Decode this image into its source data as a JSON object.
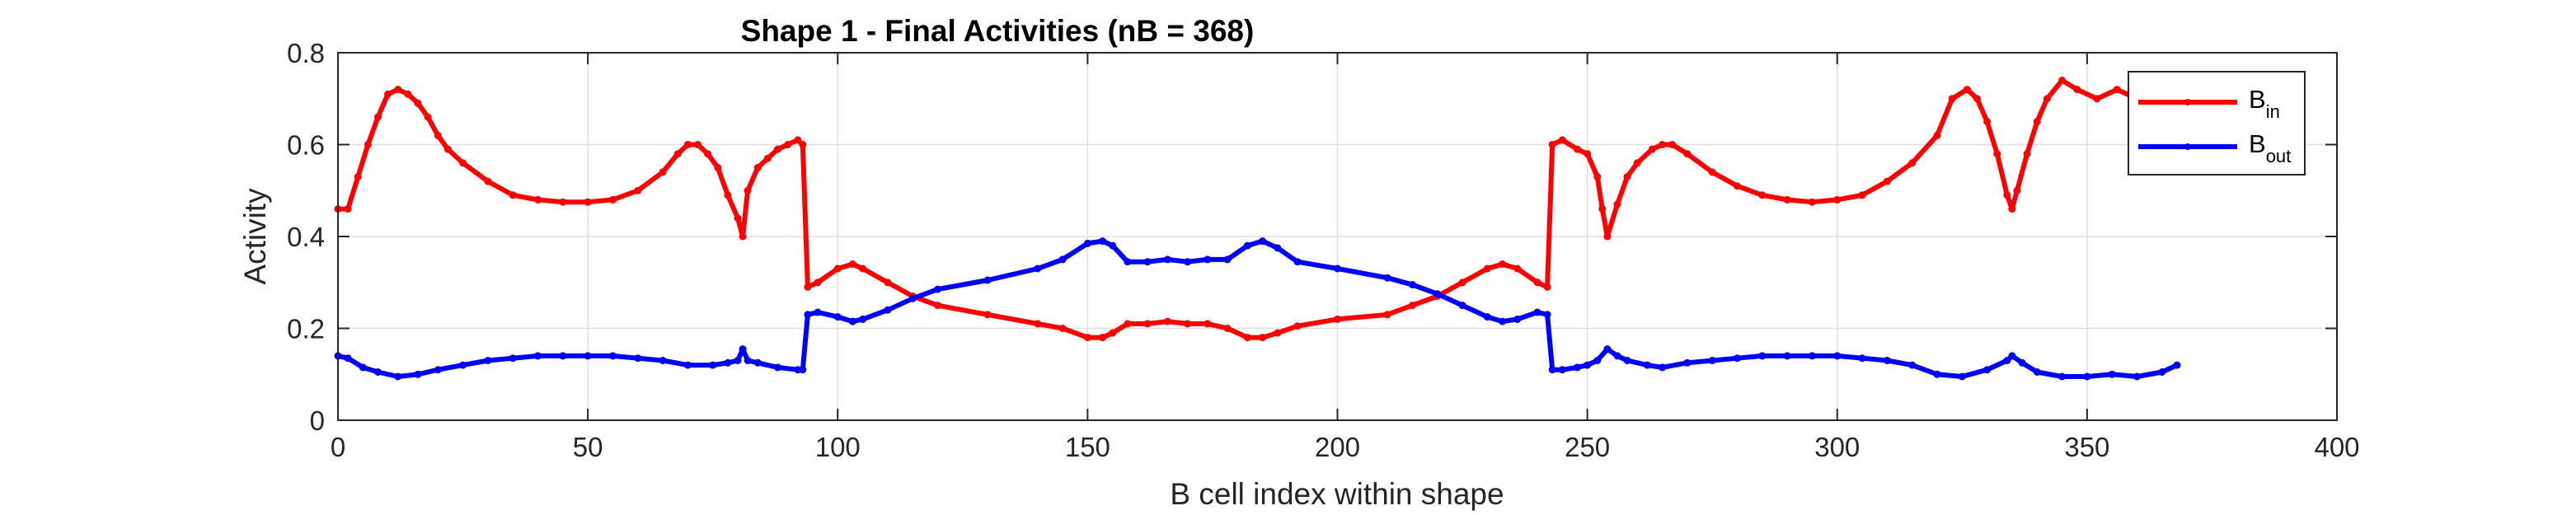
{
  "chart_data": {
    "type": "line",
    "title": "Shape 1 - Final Activities (nB = 368)",
    "xlabel": "B cell index within shape",
    "ylabel": "Activity",
    "xlim": [
      0,
      400
    ],
    "ylim": [
      0,
      0.8
    ],
    "xticks": [
      0,
      50,
      100,
      150,
      200,
      250,
      300,
      350,
      400
    ],
    "yticks": [
      0,
      0.2,
      0.4,
      0.6,
      0.8
    ],
    "xtick_labels": [
      "0",
      "50",
      "100",
      "150",
      "200",
      "250",
      "300",
      "350",
      "400"
    ],
    "ytick_labels": [
      "0",
      "0.2",
      "0.4",
      "0.6",
      "0.8"
    ],
    "grid": true,
    "legend_position": "top-right",
    "series": [
      {
        "label_main": "B",
        "label_sub": "in",
        "color": "#ff0000",
        "points": [
          [
            0,
            0.46
          ],
          [
            2,
            0.46
          ],
          [
            4,
            0.53
          ],
          [
            6,
            0.6
          ],
          [
            8,
            0.66
          ],
          [
            10,
            0.71
          ],
          [
            12,
            0.72
          ],
          [
            14,
            0.71
          ],
          [
            16,
            0.69
          ],
          [
            18,
            0.66
          ],
          [
            20,
            0.62
          ],
          [
            22,
            0.59
          ],
          [
            25,
            0.56
          ],
          [
            30,
            0.52
          ],
          [
            35,
            0.49
          ],
          [
            40,
            0.48
          ],
          [
            45,
            0.475
          ],
          [
            50,
            0.475
          ],
          [
            55,
            0.48
          ],
          [
            60,
            0.5
          ],
          [
            65,
            0.54
          ],
          [
            68,
            0.58
          ],
          [
            70,
            0.6
          ],
          [
            72,
            0.6
          ],
          [
            74,
            0.58
          ],
          [
            76,
            0.55
          ],
          [
            78,
            0.49
          ],
          [
            80,
            0.44
          ],
          [
            81,
            0.4
          ],
          [
            82,
            0.5
          ],
          [
            84,
            0.55
          ],
          [
            86,
            0.57
          ],
          [
            88,
            0.59
          ],
          [
            90,
            0.6
          ],
          [
            92,
            0.61
          ],
          [
            93,
            0.6
          ],
          [
            94,
            0.29
          ],
          [
            96,
            0.3
          ],
          [
            100,
            0.33
          ],
          [
            103,
            0.34
          ],
          [
            105,
            0.33
          ],
          [
            110,
            0.3
          ],
          [
            115,
            0.27
          ],
          [
            120,
            0.25
          ],
          [
            130,
            0.23
          ],
          [
            140,
            0.21
          ],
          [
            145,
            0.2
          ],
          [
            150,
            0.18
          ],
          [
            153,
            0.18
          ],
          [
            155,
            0.19
          ],
          [
            158,
            0.21
          ],
          [
            162,
            0.21
          ],
          [
            166,
            0.215
          ],
          [
            170,
            0.21
          ],
          [
            174,
            0.21
          ],
          [
            178,
            0.2
          ],
          [
            182,
            0.18
          ],
          [
            185,
            0.18
          ],
          [
            188,
            0.19
          ],
          [
            192,
            0.205
          ],
          [
            200,
            0.22
          ],
          [
            210,
            0.23
          ],
          [
            215,
            0.25
          ],
          [
            220,
            0.27
          ],
          [
            225,
            0.3
          ],
          [
            230,
            0.33
          ],
          [
            233,
            0.34
          ],
          [
            236,
            0.33
          ],
          [
            240,
            0.3
          ],
          [
            242,
            0.29
          ],
          [
            243,
            0.6
          ],
          [
            245,
            0.61
          ],
          [
            248,
            0.59
          ],
          [
            250,
            0.58
          ],
          [
            252,
            0.53
          ],
          [
            253,
            0.46
          ],
          [
            254,
            0.4
          ],
          [
            256,
            0.47
          ],
          [
            258,
            0.53
          ],
          [
            260,
            0.56
          ],
          [
            263,
            0.59
          ],
          [
            265,
            0.6
          ],
          [
            267,
            0.6
          ],
          [
            270,
            0.58
          ],
          [
            275,
            0.54
          ],
          [
            280,
            0.51
          ],
          [
            285,
            0.49
          ],
          [
            290,
            0.48
          ],
          [
            295,
            0.475
          ],
          [
            300,
            0.48
          ],
          [
            305,
            0.49
          ],
          [
            310,
            0.52
          ],
          [
            315,
            0.56
          ],
          [
            320,
            0.62
          ],
          [
            323,
            0.7
          ],
          [
            326,
            0.72
          ],
          [
            328,
            0.7
          ],
          [
            330,
            0.65
          ],
          [
            332,
            0.58
          ],
          [
            334,
            0.49
          ],
          [
            335,
            0.46
          ],
          [
            336,
            0.5
          ],
          [
            338,
            0.58
          ],
          [
            340,
            0.65
          ],
          [
            342,
            0.7
          ],
          [
            345,
            0.74
          ],
          [
            348,
            0.72
          ],
          [
            352,
            0.7
          ],
          [
            356,
            0.72
          ],
          [
            360,
            0.7
          ],
          [
            364,
            0.72
          ],
          [
            368,
            0.72
          ]
        ]
      },
      {
        "label_main": "B",
        "label_sub": "out",
        "color": "#0000ff",
        "points": [
          [
            0,
            0.14
          ],
          [
            2,
            0.135
          ],
          [
            5,
            0.115
          ],
          [
            8,
            0.105
          ],
          [
            12,
            0.095
          ],
          [
            16,
            0.1
          ],
          [
            20,
            0.11
          ],
          [
            25,
            0.12
          ],
          [
            30,
            0.13
          ],
          [
            35,
            0.135
          ],
          [
            40,
            0.14
          ],
          [
            45,
            0.14
          ],
          [
            50,
            0.14
          ],
          [
            55,
            0.14
          ],
          [
            60,
            0.135
          ],
          [
            65,
            0.13
          ],
          [
            70,
            0.12
          ],
          [
            75,
            0.12
          ],
          [
            78,
            0.125
          ],
          [
            80,
            0.13
          ],
          [
            81,
            0.155
          ],
          [
            82,
            0.13
          ],
          [
            84,
            0.125
          ],
          [
            88,
            0.115
          ],
          [
            92,
            0.11
          ],
          [
            93,
            0.11
          ],
          [
            94,
            0.23
          ],
          [
            96,
            0.235
          ],
          [
            100,
            0.225
          ],
          [
            103,
            0.215
          ],
          [
            105,
            0.22
          ],
          [
            110,
            0.24
          ],
          [
            115,
            0.265
          ],
          [
            120,
            0.285
          ],
          [
            130,
            0.305
          ],
          [
            140,
            0.33
          ],
          [
            145,
            0.35
          ],
          [
            150,
            0.385
          ],
          [
            153,
            0.39
          ],
          [
            155,
            0.38
          ],
          [
            158,
            0.345
          ],
          [
            162,
            0.345
          ],
          [
            166,
            0.35
          ],
          [
            170,
            0.345
          ],
          [
            174,
            0.35
          ],
          [
            178,
            0.35
          ],
          [
            182,
            0.38
          ],
          [
            185,
            0.39
          ],
          [
            188,
            0.375
          ],
          [
            192,
            0.345
          ],
          [
            200,
            0.33
          ],
          [
            210,
            0.31
          ],
          [
            215,
            0.295
          ],
          [
            220,
            0.275
          ],
          [
            225,
            0.25
          ],
          [
            230,
            0.225
          ],
          [
            233,
            0.215
          ],
          [
            236,
            0.22
          ],
          [
            240,
            0.235
          ],
          [
            242,
            0.23
          ],
          [
            243,
            0.11
          ],
          [
            245,
            0.11
          ],
          [
            248,
            0.115
          ],
          [
            250,
            0.12
          ],
          [
            252,
            0.13
          ],
          [
            254,
            0.155
          ],
          [
            256,
            0.14
          ],
          [
            258,
            0.13
          ],
          [
            262,
            0.12
          ],
          [
            265,
            0.115
          ],
          [
            270,
            0.125
          ],
          [
            275,
            0.13
          ],
          [
            280,
            0.135
          ],
          [
            285,
            0.14
          ],
          [
            290,
            0.14
          ],
          [
            295,
            0.14
          ],
          [
            300,
            0.14
          ],
          [
            305,
            0.135
          ],
          [
            310,
            0.13
          ],
          [
            315,
            0.12
          ],
          [
            320,
            0.1
          ],
          [
            325,
            0.095
          ],
          [
            330,
            0.11
          ],
          [
            334,
            0.13
          ],
          [
            335,
            0.14
          ],
          [
            337,
            0.125
          ],
          [
            340,
            0.105
          ],
          [
            345,
            0.095
          ],
          [
            350,
            0.095
          ],
          [
            355,
            0.1
          ],
          [
            360,
            0.095
          ],
          [
            365,
            0.105
          ],
          [
            368,
            0.12
          ]
        ]
      }
    ]
  }
}
